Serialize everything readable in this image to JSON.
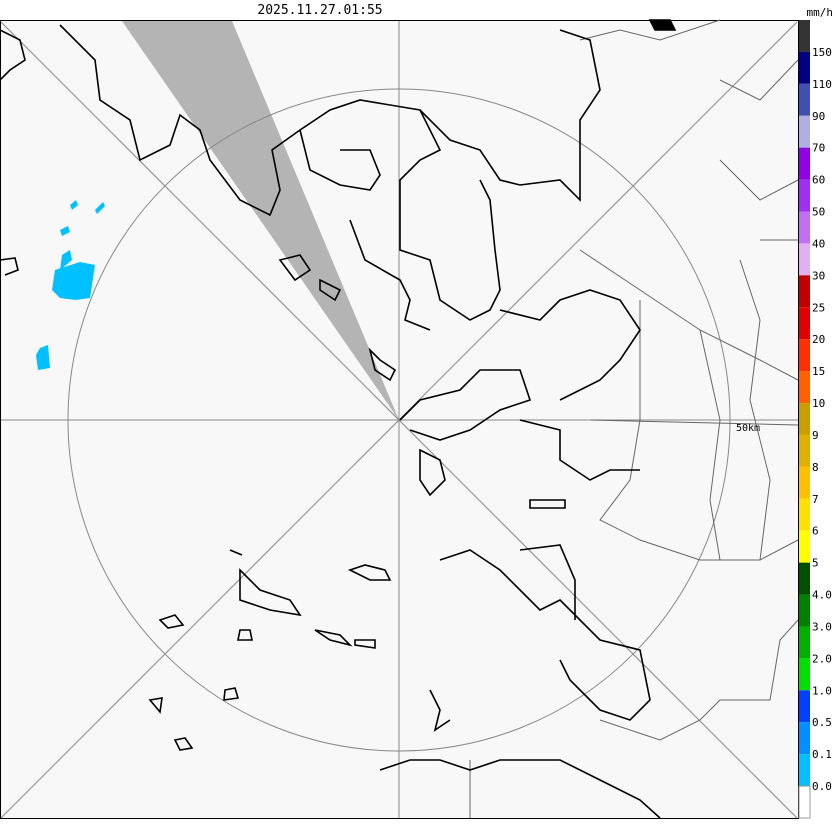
{
  "timestamp": "2025.11.27.01:55",
  "unit": "mm/h",
  "range_label": "50km",
  "legend": {
    "colors": [
      "#333333",
      "#000080",
      "#4050b0",
      "#b0b0e0",
      "#9000e0",
      "#a030f0",
      "#c070f0",
      "#e0b0f0",
      "#c00000",
      "#e00000",
      "#ff3000",
      "#ff6000",
      "#c8a000",
      "#e0b000",
      "#ffc000",
      "#ffe000",
      "#ffff00",
      "#005000",
      "#008000",
      "#00b000",
      "#00e000",
      "#0040ff",
      "#0090ff",
      "#00c0ff",
      "#ffffff"
    ],
    "labels": [
      "150",
      "110",
      "90",
      "70",
      "60",
      "50",
      "40",
      "30",
      "25",
      "20",
      "15",
      "10",
      "9",
      "8",
      "7",
      "6",
      "5",
      "4.0",
      "3.0",
      "2.0",
      "1.0",
      "0.5",
      "0.1",
      "0.0"
    ]
  }
}
